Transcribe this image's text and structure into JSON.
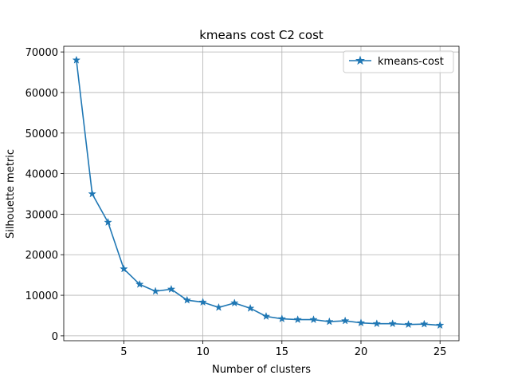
{
  "chart_data": {
    "type": "line",
    "title": "kmeans cost C2 cost",
    "xlabel": "Number of clusters",
    "ylabel": "Silhouette metric",
    "xlim": [
      1.2,
      26.2
    ],
    "ylim": [
      -1200,
      71400
    ],
    "xticks": [
      5,
      10,
      15,
      20,
      25
    ],
    "yticks": [
      0,
      10000,
      20000,
      30000,
      40000,
      50000,
      60000,
      70000
    ],
    "grid": true,
    "legend_position": "top-right",
    "series": [
      {
        "name": "kmeans-cost",
        "color": "#1f77b4",
        "marker": "star",
        "x": [
          2,
          3,
          4,
          5,
          6,
          7,
          8,
          9,
          10,
          11,
          12,
          13,
          14,
          15,
          16,
          17,
          18,
          19,
          20,
          21,
          22,
          23,
          24,
          25
        ],
        "values": [
          68000,
          35000,
          28000,
          16500,
          12700,
          11000,
          11500,
          8800,
          8300,
          7000,
          8100,
          6800,
          4800,
          4200,
          4000,
          4000,
          3500,
          3700,
          3200,
          3000,
          3000,
          2800,
          2900,
          2600
        ]
      }
    ]
  }
}
